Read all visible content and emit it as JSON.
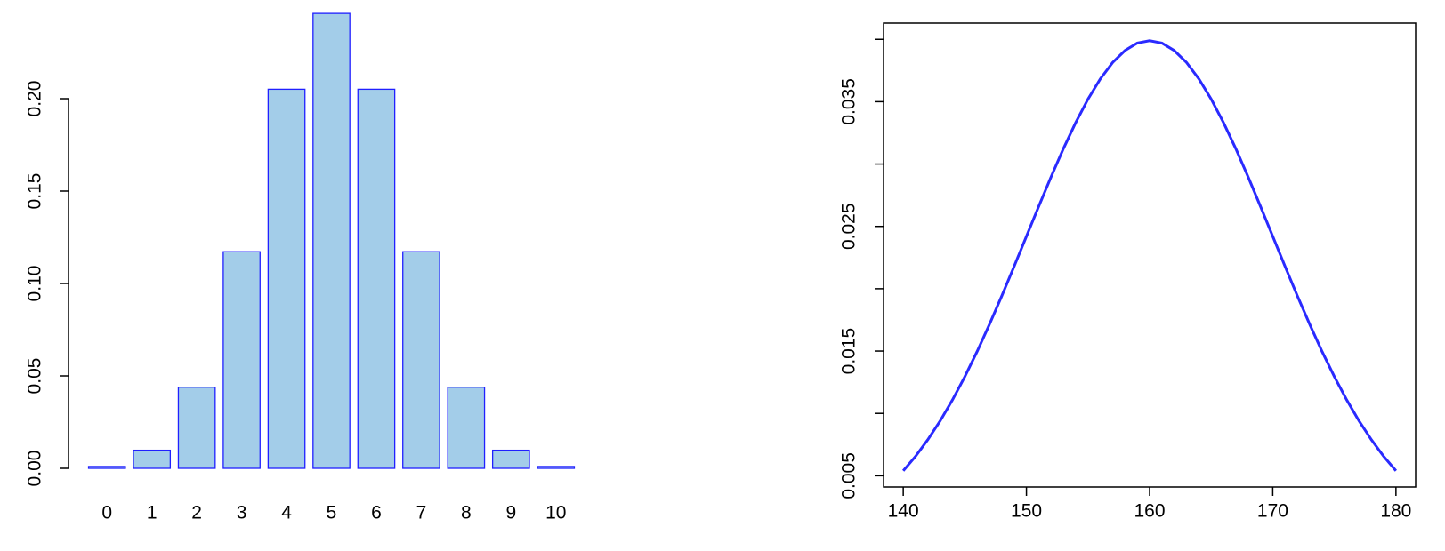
{
  "chart_data": [
    {
      "type": "bar",
      "categories": [
        "0",
        "1",
        "2",
        "3",
        "4",
        "5",
        "6",
        "7",
        "8",
        "9",
        "10"
      ],
      "values": [
        0.001,
        0.0098,
        0.0439,
        0.1172,
        0.2051,
        0.2461,
        0.2051,
        0.1172,
        0.0439,
        0.0098,
        0.001
      ],
      "color": "#a3cde9",
      "edge_color": "#2020ff",
      "ylim": [
        0,
        0.25
      ],
      "yticks": [
        {
          "value": 0,
          "label": "0.00"
        },
        {
          "value": 0.05,
          "label": "0.05"
        },
        {
          "value": 0.1,
          "label": "0.10"
        },
        {
          "value": 0.15,
          "label": "0.15"
        },
        {
          "value": 0.2,
          "label": "0.20"
        }
      ]
    },
    {
      "type": "line",
      "x": [
        140,
        141,
        142,
        143,
        144,
        145,
        146,
        147,
        148,
        149,
        150,
        151,
        152,
        153,
        154,
        155,
        156,
        157,
        158,
        159,
        160,
        161,
        162,
        163,
        164,
        165,
        166,
        167,
        168,
        169,
        170,
        171,
        172,
        173,
        174,
        175,
        176,
        177,
        178,
        179,
        180
      ],
      "values": [
        0.0054,
        0.00656,
        0.0079,
        0.0094,
        0.01109,
        0.01295,
        0.01497,
        0.01714,
        0.01942,
        0.02179,
        0.0242,
        0.02661,
        0.02897,
        0.03123,
        0.03332,
        0.03521,
        0.03683,
        0.03814,
        0.0391,
        0.0397,
        0.03989,
        0.0397,
        0.0391,
        0.03814,
        0.03683,
        0.03521,
        0.03332,
        0.03123,
        0.02897,
        0.02661,
        0.0242,
        0.02179,
        0.01942,
        0.01714,
        0.01497,
        0.01295,
        0.01109,
        0.0094,
        0.0079,
        0.00656,
        0.0054
      ],
      "color": "#2a2aff",
      "xlim": [
        138.4,
        181.6
      ],
      "ylim": [
        0.0041,
        0.0413
      ],
      "xticks": [
        140,
        150,
        160,
        170,
        180
      ],
      "yticks": [
        0.005,
        0.015,
        0.025,
        0.035
      ],
      "yminorticks": [
        0.01,
        0.02,
        0.03,
        0.04
      ]
    }
  ]
}
